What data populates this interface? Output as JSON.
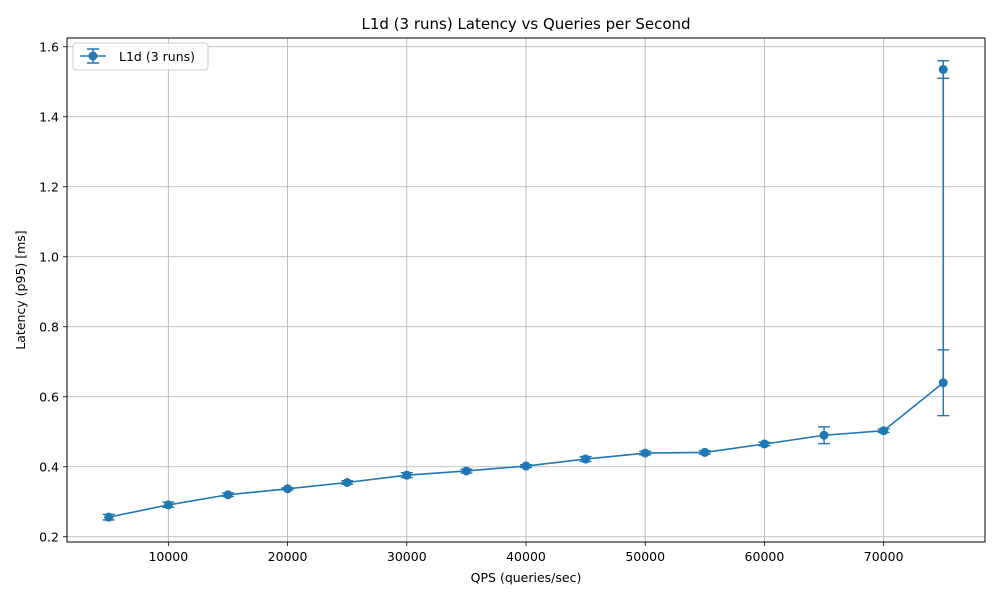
{
  "chart_data": {
    "type": "line",
    "title": "L1d (3 runs) Latency vs Queries per Second",
    "xlabel": "QPS (queries/sec)",
    "ylabel": "Latency (p95) [ms]",
    "xlim": [
      1500,
      78500
    ],
    "ylim": [
      0.185,
      1.625
    ],
    "x_ticks": [
      10000,
      20000,
      30000,
      40000,
      50000,
      60000,
      70000
    ],
    "x_tick_labels": [
      "10000",
      "20000",
      "30000",
      "40000",
      "50000",
      "60000",
      "70000"
    ],
    "y_ticks": [
      0.2,
      0.4,
      0.6,
      0.8,
      1.0,
      1.2,
      1.4,
      1.6
    ],
    "y_tick_labels": [
      "0.2",
      "0.4",
      "0.6",
      "0.8",
      "1.0",
      "1.2",
      "1.4",
      "1.6"
    ],
    "grid": true,
    "legend_position": "top-left",
    "colors": {
      "series": "#1f77b4",
      "grid": "#b0b0b0"
    },
    "series": [
      {
        "name": "L1d (3 runs)",
        "x": [
          5000,
          10000,
          15000,
          20000,
          25000,
          30000,
          35000,
          40000,
          45000,
          50000,
          55000,
          60000,
          65000,
          70000,
          75000,
          75000
        ],
        "y": [
          0.256,
          0.291,
          0.32,
          0.337,
          0.355,
          0.376,
          0.388,
          0.402,
          0.422,
          0.439,
          0.441,
          0.465,
          0.49,
          0.503,
          0.64,
          1.535
        ],
        "y_low": [
          0.248,
          0.284,
          0.315,
          0.334,
          0.35,
          0.369,
          0.382,
          0.398,
          0.415,
          0.434,
          0.436,
          0.46,
          0.466,
          0.498,
          0.546,
          1.51
        ],
        "y_high": [
          0.264,
          0.299,
          0.325,
          0.34,
          0.36,
          0.383,
          0.393,
          0.406,
          0.429,
          0.444,
          0.446,
          0.47,
          0.514,
          0.508,
          0.734,
          1.56
        ]
      }
    ]
  }
}
